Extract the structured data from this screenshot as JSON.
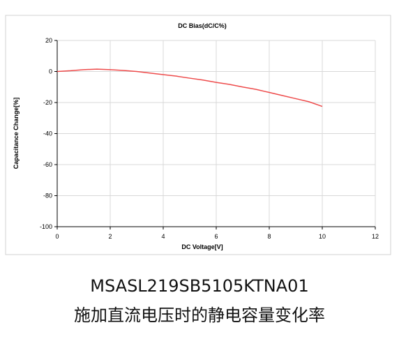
{
  "chart_data": {
    "type": "line",
    "title": "DC Bias(dC/C%)",
    "x_label": "DC Voltage[V]",
    "y_label": "Capacitance Change[%]",
    "x": [
      0,
      0.5,
      1,
      1.5,
      2,
      2.5,
      3,
      3.5,
      4,
      4.5,
      5,
      5.5,
      6,
      6.5,
      7,
      7.5,
      8,
      8.5,
      9,
      9.5,
      10
    ],
    "series": [
      {
        "name": "DC Bias",
        "color": "#ee4b4b",
        "values": [
          0,
          0.5,
          1.2,
          1.5,
          1.2,
          0.7,
          0,
          -1,
          -2,
          -3,
          -4.3,
          -5.5,
          -7,
          -8.3,
          -10,
          -11.5,
          -13.5,
          -15.5,
          -17.5,
          -19.5,
          -22.5
        ]
      }
    ],
    "xlim": [
      0,
      12
    ],
    "xticks": [
      0,
      2,
      4,
      6,
      8,
      10,
      12
    ],
    "ylim": [
      -100,
      20
    ],
    "yticks": [
      -100,
      -80,
      -60,
      -40,
      -20,
      0,
      20
    ],
    "grid": true
  },
  "caption": [
    "MSASL219SB5105KTNA01",
    "施加直流电压时的静电容量变化率"
  ]
}
